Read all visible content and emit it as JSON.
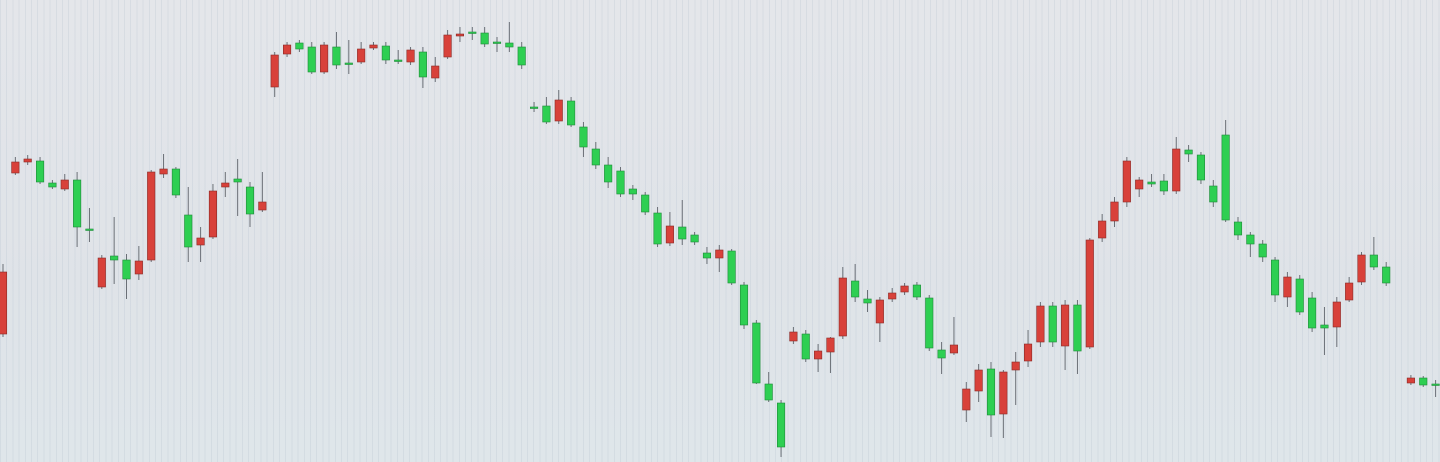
{
  "chart_data": {
    "type": "candlestick",
    "up_color": "#d8413a",
    "down_color": "#2ecf52",
    "ylim": [
      0,
      462
    ],
    "open": [
      128,
      289,
      300,
      301,
      279,
      273,
      282,
      233,
      175,
      206,
      202,
      188,
      202,
      288,
      293,
      247,
      217,
      225,
      275,
      283,
      275,
      252,
      375,
      408,
      419,
      415,
      390,
      415,
      399,
      400,
      414,
      416,
      402,
      400,
      410,
      384,
      405,
      426,
      430,
      429,
      420,
      419,
      415,
      355,
      356,
      341,
      361,
      335,
      313,
      297,
      291,
      273,
      267,
      249,
      219,
      235,
      227,
      209,
      204,
      211,
      177,
      139,
      78,
      59,
      121,
      128,
      103,
      110,
      126,
      181,
      163,
      139,
      163,
      170,
      177,
      164,
      112,
      109,
      52,
      71,
      93,
      48,
      92,
      101,
      120,
      156,
      116,
      157,
      115,
      224,
      241,
      260,
      273,
      280,
      281,
      271,
      312,
      307,
      276,
      327,
      240,
      227,
      218,
      202,
      165,
      183,
      164,
      137,
      135,
      162,
      180,
      207,
      195,
      null,
      79,
      84,
      78
    ],
    "high": [
      198,
      305,
      307,
      305,
      282,
      288,
      290,
      254,
      207,
      245,
      208,
      216,
      292,
      308,
      295,
      275,
      235,
      278,
      290,
      303,
      280,
      290,
      410,
      420,
      422,
      420,
      420,
      430,
      422,
      420,
      420,
      420,
      412,
      415,
      415,
      405,
      432,
      435,
      435,
      435,
      425,
      440,
      420,
      360,
      365,
      372,
      365,
      340,
      320,
      305,
      295,
      277,
      270,
      255,
      250,
      262,
      230,
      215,
      217,
      213,
      180,
      142,
      90,
      62,
      135,
      132,
      118,
      125,
      195,
      198,
      172,
      165,
      174,
      179,
      180,
      167,
      120,
      145,
      80,
      98,
      100,
      92,
      110,
      132,
      160,
      160,
      162,
      162,
      224,
      248,
      265,
      305,
      285,
      288,
      288,
      325,
      317,
      310,
      282,
      342,
      245,
      230,
      222,
      205,
      190,
      187,
      170,
      155,
      165,
      185,
      210,
      225,
      200,
      null,
      87,
      86,
      82
    ],
    "low": [
      125,
      287,
      297,
      278,
      273,
      271,
      215,
      220,
      173,
      178,
      163,
      182,
      200,
      284,
      264,
      200,
      200,
      223,
      265,
      246,
      235,
      250,
      365,
      405,
      410,
      388,
      388,
      393,
      388,
      398,
      412,
      398,
      398,
      397,
      374,
      380,
      403,
      420,
      422,
      415,
      410,
      410,
      393,
      350,
      338,
      338,
      335,
      305,
      293,
      274,
      265,
      262,
      247,
      215,
      216,
      217,
      217,
      198,
      190,
      177,
      133,
      78,
      60,
      5,
      118,
      100,
      90,
      89,
      123,
      160,
      150,
      120,
      160,
      167,
      162,
      111,
      88,
      107,
      40,
      60,
      25,
      24,
      57,
      95,
      115,
      115,
      92,
      88,
      113,
      220,
      235,
      255,
      265,
      275,
      267,
      268,
      300,
      278,
      255,
      240,
      222,
      205,
      200,
      160,
      155,
      147,
      130,
      107,
      115,
      160,
      177,
      192,
      176,
      null,
      77,
      75,
      65
    ],
    "close": [
      190,
      300,
      303,
      280,
      275,
      282,
      235,
      232,
      204,
      202,
      183,
      201,
      290,
      293,
      267,
      215,
      224,
      271,
      279,
      280,
      248,
      260,
      407,
      417,
      413,
      390,
      417,
      397,
      398,
      413,
      417,
      402,
      401,
      412,
      385,
      396,
      427,
      428,
      429,
      418,
      419,
      415,
      397,
      354,
      340,
      362,
      337,
      315,
      297,
      280,
      268,
      268,
      250,
      218,
      236,
      223,
      220,
      204,
      212,
      179,
      137,
      79,
      62,
      15,
      130,
      103,
      111,
      124,
      184,
      165,
      159,
      162,
      169,
      176,
      165,
      114,
      104,
      117,
      73,
      92,
      47,
      90,
      100,
      118,
      156,
      120,
      157,
      111,
      222,
      241,
      260,
      301,
      282,
      278,
      271,
      313,
      308,
      282,
      260,
      242,
      227,
      218,
      205,
      167,
      185,
      150,
      134,
      134,
      160,
      179,
      207,
      195,
      179,
      null,
      84,
      77,
      77
    ]
  }
}
